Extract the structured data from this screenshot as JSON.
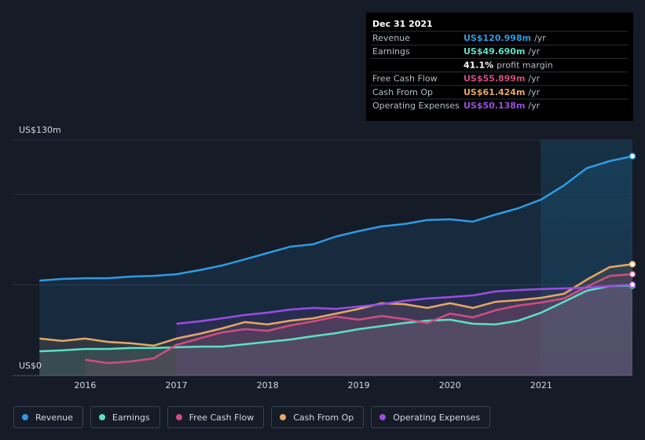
{
  "chart_data": {
    "type": "area-line",
    "x": [
      2015.5,
      2015.75,
      2016.0,
      2016.25,
      2016.5,
      2016.75,
      2017.0,
      2017.25,
      2017.5,
      2017.75,
      2018.0,
      2018.25,
      2018.5,
      2018.75,
      2019.0,
      2019.25,
      2019.5,
      2019.75,
      2020.0,
      2020.25,
      2020.5,
      2020.75,
      2021.0,
      2021.25,
      2021.5,
      2021.75,
      2022.0
    ],
    "series": [
      {
        "name": "Revenue",
        "color": "#2d9be5",
        "values": [
          52.4,
          53.3,
          53.7,
          53.7,
          54.6,
          55.0,
          55.9,
          58.1,
          60.7,
          64.1,
          67.6,
          71.1,
          72.4,
          76.7,
          79.7,
          82.3,
          83.6,
          85.8,
          86.2,
          84.9,
          88.8,
          92.3,
          97.1,
          104.9,
          114.4,
          118.3,
          120.998
        ]
      },
      {
        "name": "Earnings",
        "color": "#5ce0c8",
        "values": [
          13.4,
          13.9,
          14.7,
          14.7,
          15.2,
          15.2,
          15.6,
          16.0,
          16.0,
          17.3,
          18.6,
          19.9,
          21.7,
          23.4,
          25.6,
          27.3,
          29.0,
          30.3,
          30.8,
          28.6,
          28.2,
          30.3,
          34.7,
          40.7,
          46.8,
          49.4,
          49.69
        ]
      },
      {
        "name": "Free Cash Flow",
        "color": "#d14d82",
        "values": [
          null,
          null,
          8.7,
          6.9,
          7.8,
          9.5,
          16.9,
          20.4,
          23.8,
          25.6,
          24.7,
          27.7,
          29.9,
          32.5,
          30.8,
          32.9,
          31.2,
          29.0,
          34.2,
          32.1,
          36.0,
          38.6,
          40.3,
          42.5,
          49.0,
          55.0,
          55.899
        ]
      },
      {
        "name": "Cash From Op",
        "color": "#e8a762",
        "values": [
          20.4,
          19.1,
          20.4,
          18.6,
          17.8,
          16.5,
          20.4,
          23.0,
          26.0,
          29.5,
          28.2,
          30.3,
          31.6,
          34.2,
          36.8,
          39.9,
          39.4,
          37.3,
          39.9,
          37.3,
          40.7,
          41.6,
          42.9,
          45.1,
          52.9,
          59.8,
          61.424
        ]
      },
      {
        "name": "Operating Expenses",
        "color": "#9b4de0",
        "values": [
          null,
          null,
          null,
          null,
          null,
          null,
          28.6,
          29.9,
          31.6,
          33.4,
          34.7,
          36.4,
          37.3,
          36.8,
          38.1,
          39.4,
          41.2,
          42.5,
          43.3,
          44.2,
          46.4,
          47.2,
          47.7,
          48.1,
          48.5,
          49.4,
          50.138
        ]
      }
    ],
    "xlim": [
      2015.48,
      2022.0
    ],
    "xticks": [
      2016,
      2017,
      2018,
      2019,
      2020,
      2021
    ],
    "ylim": [
      0,
      130
    ],
    "yticks": [
      {
        "value": 0,
        "label": "US$0"
      },
      {
        "value": 50,
        "label": null
      },
      {
        "value": 100,
        "label": null
      },
      {
        "value": 130,
        "label": "US$130m"
      }
    ],
    "grid": true,
    "tooltip": {
      "date": "Dec 31 2021",
      "rows": [
        {
          "label": "Revenue",
          "value": "US$120.998m",
          "unit": "/yr",
          "color": "#2d9be5"
        },
        {
          "label": "Earnings",
          "value": "US$49.690m",
          "unit": "/yr",
          "color": "#5ce0c8"
        },
        {
          "label": null,
          "value": "41.1%",
          "unit": "profit margin",
          "color": "#ffffff"
        },
        {
          "label": "Free Cash Flow",
          "value": "US$55.899m",
          "unit": "/yr",
          "color": "#d14d82"
        },
        {
          "label": "Cash From Op",
          "value": "US$61.424m",
          "unit": "/yr",
          "color": "#e8a762"
        },
        {
          "label": "Operating Expenses",
          "value": "US$50.138m",
          "unit": "/yr",
          "color": "#9b4de0"
        }
      ]
    }
  }
}
